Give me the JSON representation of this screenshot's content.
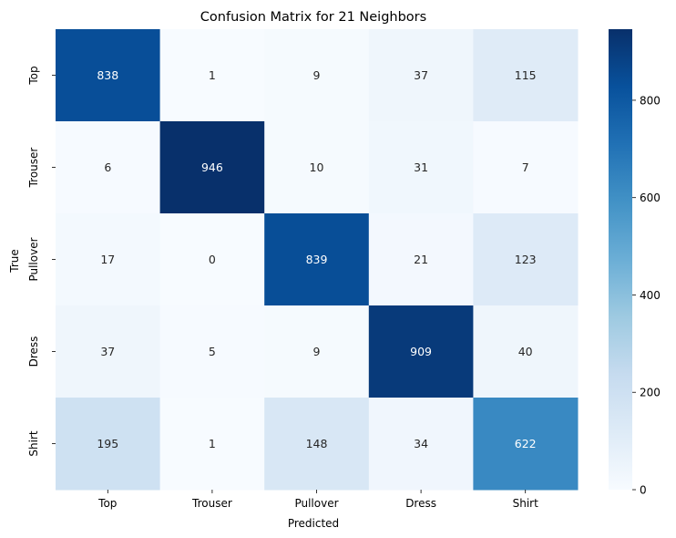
{
  "chart_data": {
    "type": "heatmap",
    "title": "Confusion Matrix for 21 Neighbors",
    "xlabel": "Predicted",
    "ylabel": "True",
    "x_categories": [
      "Top",
      "Trouser",
      "Pullover",
      "Dress",
      "Shirt"
    ],
    "y_categories": [
      "Top",
      "Trouser",
      "Pullover",
      "Dress",
      "Shirt"
    ],
    "values": [
      [
        838,
        1,
        9,
        37,
        115
      ],
      [
        6,
        946,
        10,
        31,
        7
      ],
      [
        17,
        0,
        839,
        21,
        123
      ],
      [
        37,
        5,
        9,
        909,
        40
      ],
      [
        195,
        1,
        148,
        34,
        622
      ]
    ],
    "colorbar": {
      "min": 0,
      "max": 946,
      "ticks": [
        0,
        200,
        400,
        600,
        800
      ]
    },
    "colormap": "Blues"
  }
}
